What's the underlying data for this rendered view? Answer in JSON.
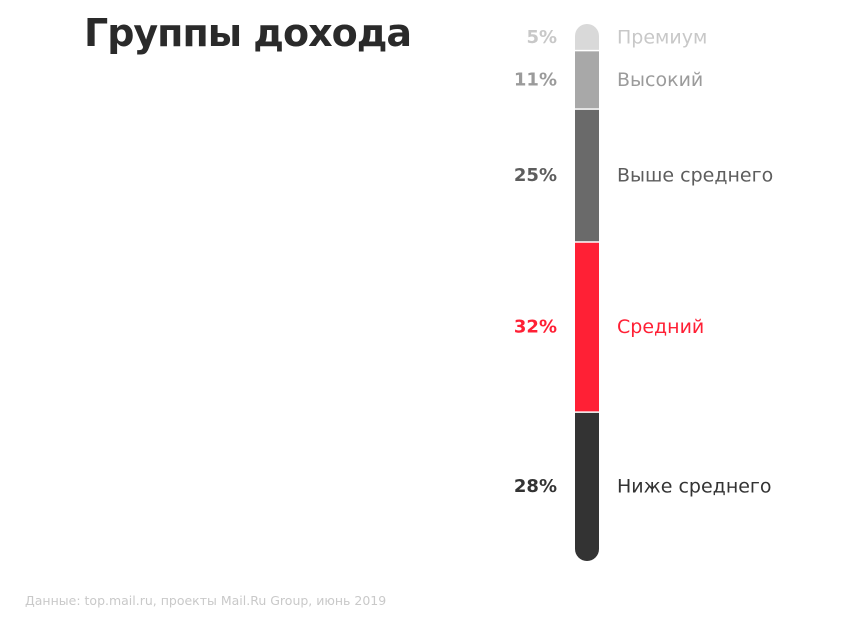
{
  "title": "Группы дохода",
  "source": "Данные: top.mail.ru, проекты Mail.Ru Group, июнь 2019",
  "chart_data": {
    "type": "bar",
    "orientation": "stacked-vertical",
    "title": "Группы дохода",
    "categories": [
      "Премиум",
      "Высокий",
      "Выше среднего",
      "Средний",
      "Ниже среднего"
    ],
    "values": [
      5,
      11,
      25,
      32,
      28
    ],
    "value_labels": [
      "5%",
      "11%",
      "25%",
      "32%",
      "28%"
    ],
    "unit": "%",
    "colors": [
      "#d9d9d9",
      "#a8a8a8",
      "#6a6a6a",
      "#ff2035",
      "#333333"
    ],
    "label_colors": [
      "#c8c8c8",
      "#9b9b9b",
      "#5d5d5d",
      "#ff2035",
      "#333333"
    ],
    "highlight": "Средний",
    "legend": "none",
    "grid": false
  }
}
